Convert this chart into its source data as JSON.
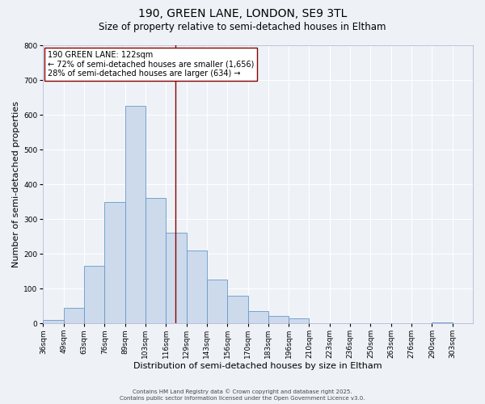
{
  "title_line1": "190, GREEN LANE, LONDON, SE9 3TL",
  "title_line2": "Size of property relative to semi-detached houses in Eltham",
  "xlabel": "Distribution of semi-detached houses by size in Eltham",
  "ylabel": "Number of semi-detached properties",
  "bin_labels": [
    "36sqm",
    "49sqm",
    "63sqm",
    "76sqm",
    "89sqm",
    "103sqm",
    "116sqm",
    "129sqm",
    "143sqm",
    "156sqm",
    "170sqm",
    "183sqm",
    "196sqm",
    "210sqm",
    "223sqm",
    "236sqm",
    "250sqm",
    "263sqm",
    "276sqm",
    "290sqm",
    "303sqm"
  ],
  "bar_heights": [
    10,
    45,
    165,
    350,
    625,
    360,
    260,
    210,
    125,
    80,
    35,
    22,
    13,
    0,
    0,
    0,
    0,
    0,
    0,
    2,
    0
  ],
  "bar_color": "#ccdaeb",
  "bar_edge_color": "#6699cc",
  "ylim": [
    0,
    800
  ],
  "yticks": [
    0,
    100,
    200,
    300,
    400,
    500,
    600,
    700,
    800
  ],
  "vline_index": 6.46,
  "vline_color": "#880000",
  "annotation_title": "190 GREEN LANE: 122sqm",
  "annotation_line1": "← 72% of semi-detached houses are smaller (1,656)",
  "annotation_line2": "28% of semi-detached houses are larger (634) →",
  "annotation_box_color": "#ffffff",
  "annotation_box_edge": "#880000",
  "bg_color": "#eef2f7",
  "plot_bg_color": "#eef2f7",
  "grid_color": "#ffffff",
  "footer_line1": "Contains HM Land Registry data © Crown copyright and database right 2025.",
  "footer_line2": "Contains public sector information licensed under the Open Government Licence v3.0.",
  "title_fontsize": 10,
  "subtitle_fontsize": 8.5,
  "axis_label_fontsize": 8,
  "tick_fontsize": 6.5,
  "ann_fontsize": 7,
  "footer_fontsize": 5
}
